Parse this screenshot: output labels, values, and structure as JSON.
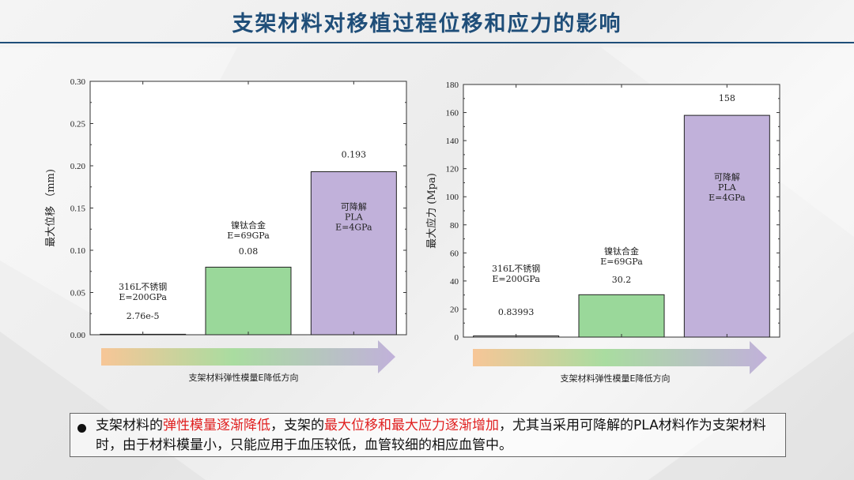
{
  "title": "支架材料对移植过程位移和应力的影响",
  "chart_data": [
    {
      "type": "bar",
      "ylabel": "最大位移 （mm)",
      "ylim": [
        0,
        0.3
      ],
      "yticks": [
        "0.00",
        "0.05",
        "0.10",
        "0.15",
        "0.20",
        "0.25",
        "0.30"
      ],
      "grid": false,
      "categories": [
        "316L不锈钢",
        "镍钛合金",
        "可降解PLA"
      ],
      "bar_labels": [
        [
          "316L不锈钢",
          "E=200GPa"
        ],
        [
          "镍钛合金",
          "E=69GPa"
        ],
        [
          "可降解",
          "PLA",
          "E=4GPa"
        ]
      ],
      "values": [
        2.76e-05,
        0.08,
        0.193
      ],
      "value_labels": [
        "2.76e-5",
        "0.08",
        "0.193"
      ],
      "colors": [
        "#ffffff",
        "#9ad89a",
        "#c1b1da"
      ],
      "arrow_label": "支架材料弹性模量E降低方向"
    },
    {
      "type": "bar",
      "ylabel": "最大应力 (Mpa)",
      "ylim": [
        0,
        180
      ],
      "yticks": [
        "0",
        "20",
        "40",
        "60",
        "80",
        "100",
        "120",
        "140",
        "160",
        "180"
      ],
      "grid": false,
      "categories": [
        "316L不锈钢",
        "镍钛合金",
        "可降解PLA"
      ],
      "bar_labels": [
        [
          "316L不锈钢",
          "E=200GPa"
        ],
        [
          "镍钛合金",
          "E=69GPa"
        ],
        [
          "可降解",
          "PLA",
          "E=4GPa"
        ]
      ],
      "values": [
        0.83993,
        30.2,
        158
      ],
      "value_labels": [
        "0.83993",
        "30.2",
        "158"
      ],
      "colors": [
        "#ffffff",
        "#9ad89a",
        "#c1b1da"
      ],
      "arrow_label": "支架材料弹性模量E降低方向"
    }
  ],
  "note": {
    "segments": [
      {
        "text": "支架材料的",
        "hl": false
      },
      {
        "text": "弹性模量逐渐降低",
        "hl": true
      },
      {
        "text": "，支架的",
        "hl": false
      },
      {
        "text": "最大位移和最大应力逐渐增加",
        "hl": true
      },
      {
        "text": "，尤其当采用可降解的PLA材料作为支架材料时，由于材料模量小，只能应用于血压较低，血管较细的相应血管中。",
        "hl": false
      }
    ],
    "highlight_color": "#e02020"
  }
}
